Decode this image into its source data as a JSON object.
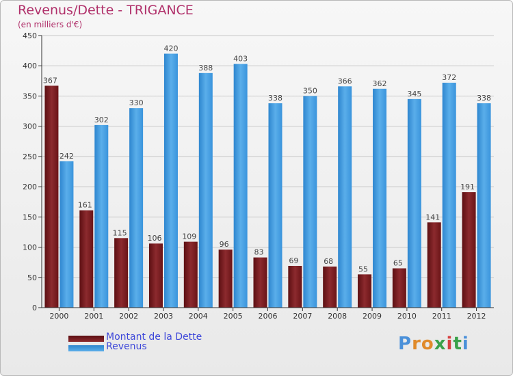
{
  "header": {
    "title": "Revenus/Dette - TRIGANCE",
    "subtitle": "(en milliers d'€)"
  },
  "colors": {
    "debt": "#7a1a1d",
    "revenue": "#3b9ae1",
    "title": "#b0306a",
    "legend_text": "#3d47d9"
  },
  "chart_data": {
    "type": "bar",
    "categories": [
      "2000",
      "2001",
      "2002",
      "2003",
      "2004",
      "2005",
      "2006",
      "2007",
      "2008",
      "2009",
      "2010",
      "2011",
      "2012"
    ],
    "series": [
      {
        "name": "Montant de la Dette",
        "values": [
          367,
          161,
          115,
          106,
          109,
          96,
          83,
          69,
          68,
          55,
          65,
          141,
          191
        ]
      },
      {
        "name": "Revenus",
        "values": [
          242,
          302,
          330,
          420,
          388,
          403,
          338,
          350,
          366,
          362,
          345,
          372,
          338
        ]
      }
    ],
    "yticks": [
      0,
      50,
      100,
      150,
      200,
      250,
      300,
      350,
      400,
      450
    ],
    "ylim": [
      0,
      450
    ],
    "grid": true,
    "legend_position": "bottom-left"
  },
  "legend": {
    "debt_label": "Montant de la Dette",
    "revenue_label": "Revenus"
  },
  "logo": {
    "letters": [
      "P",
      "r",
      "o",
      "x",
      "i",
      "t",
      "i"
    ],
    "letter_colors": [
      "#4a90d9",
      "#e08a2a",
      "#e08a2a",
      "#3aa14a",
      "#d64040",
      "#3aa14a",
      "#4a90d9"
    ]
  }
}
